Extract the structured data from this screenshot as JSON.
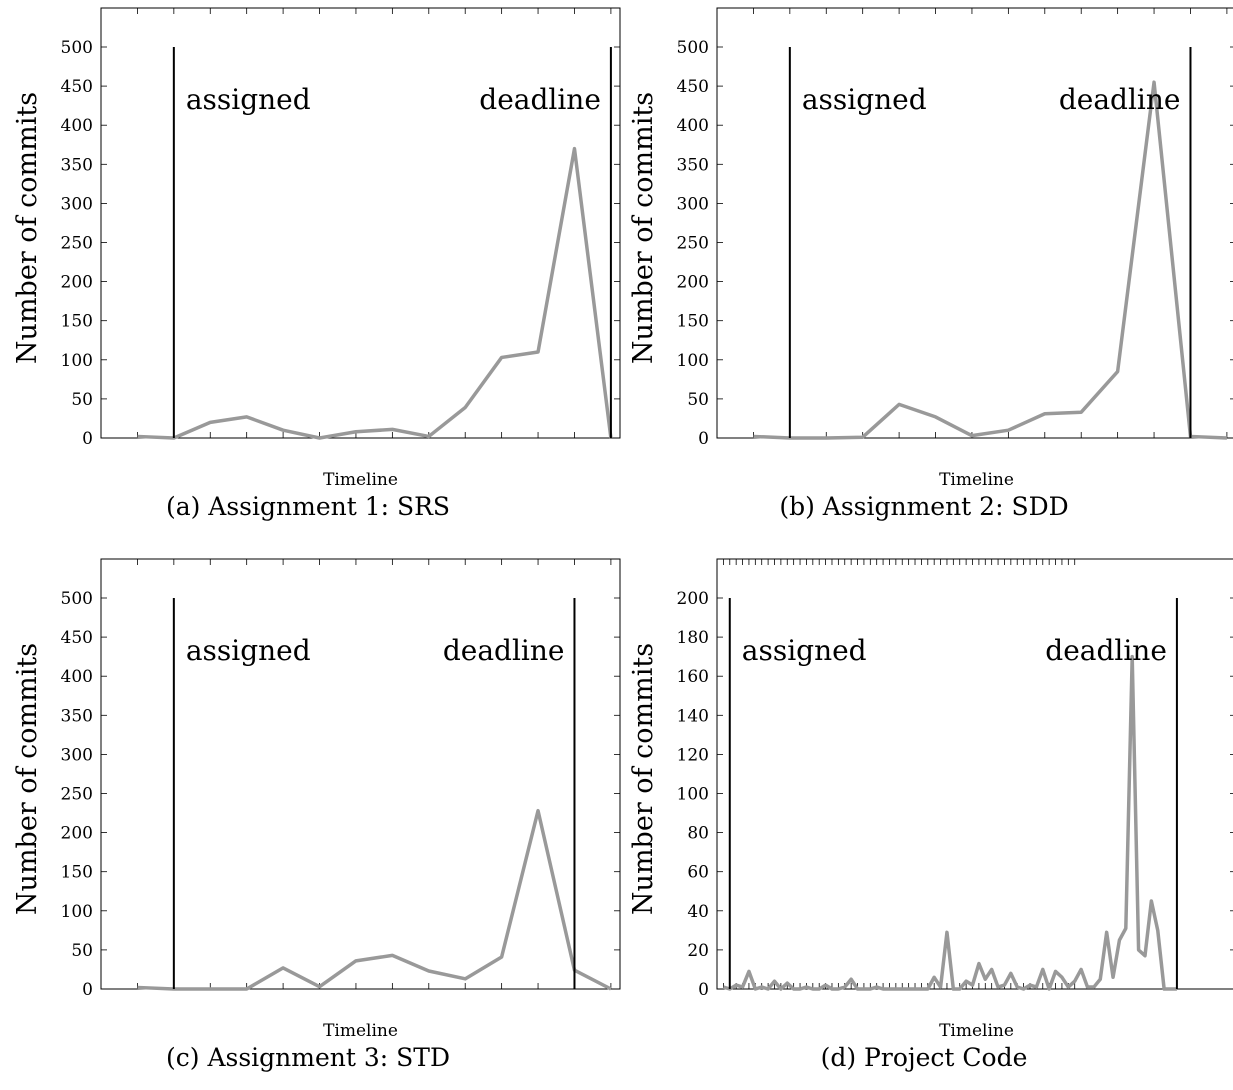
{
  "chart_data": [
    {
      "type": "line",
      "caption": "(a) Assignment 1: SRS",
      "xlabel": "Timeline",
      "ylabel": "Number of commits",
      "ylim": [
        0,
        500
      ],
      "yticks": [
        0,
        50,
        100,
        150,
        200,
        250,
        300,
        350,
        400,
        450,
        500
      ],
      "xlim": [
        -1,
        13.25
      ],
      "x_ticks_count": 15,
      "line_color": "#999999",
      "values": [
        2,
        0,
        20,
        27,
        10,
        0,
        8,
        11,
        2,
        39,
        103,
        110,
        370,
        0
      ],
      "markers": [
        {
          "x": 1,
          "label": "assigned",
          "label_side": "right"
        },
        {
          "x": 13,
          "label": "deadline",
          "label_side": "left"
        }
      ]
    },
    {
      "type": "line",
      "caption": "(b) Assignment 2: SDD",
      "xlabel": "Timeline",
      "ylabel": "Number of commits",
      "ylim": [
        0,
        500
      ],
      "yticks": [
        0,
        50,
        100,
        150,
        200,
        250,
        300,
        350,
        400,
        450,
        500
      ],
      "xlim": [
        -1,
        13.25
      ],
      "x_ticks_count": 15,
      "line_color": "#999999",
      "values": [
        2,
        0,
        0,
        1,
        43,
        27,
        3,
        10,
        31,
        33,
        85,
        455,
        2,
        0
      ],
      "markers": [
        {
          "x": 1,
          "label": "assigned",
          "label_side": "right"
        },
        {
          "x": 12,
          "label": "deadline",
          "label_side": "left"
        }
      ]
    },
    {
      "type": "line",
      "caption": "(c) Assignment 3: STD",
      "xlabel": "Timeline",
      "ylabel": "Number of commits",
      "ylim": [
        0,
        500
      ],
      "yticks": [
        0,
        50,
        100,
        150,
        200,
        250,
        300,
        350,
        400,
        450,
        500
      ],
      "xlim": [
        -1,
        13.25
      ],
      "x_ticks_count": 15,
      "line_color": "#999999",
      "values": [
        2,
        0,
        0,
        0,
        27,
        3,
        36,
        43,
        23,
        13,
        41,
        228,
        24,
        0
      ],
      "markers": [
        {
          "x": 1,
          "label": "assigned",
          "label_side": "right"
        },
        {
          "x": 12,
          "label": "deadline",
          "label_side": "left"
        }
      ]
    },
    {
      "type": "line",
      "caption": "(d) Project Code",
      "xlabel": "Timeline",
      "ylabel": "Number of commits",
      "ylim": [
        0,
        200
      ],
      "yticks": [
        0,
        20,
        40,
        60,
        80,
        100,
        120,
        140,
        160,
        180,
        200
      ],
      "xlim": [
        -1,
        80.25
      ],
      "x_ticks_count": 56,
      "line_color": "#999999",
      "values": [
        1,
        0,
        2,
        1,
        9,
        0,
        1,
        0,
        4,
        0,
        3,
        0,
        0,
        1,
        0,
        0,
        2,
        0,
        0,
        1,
        5,
        0,
        0,
        0,
        1,
        0,
        0,
        0,
        0,
        0,
        0,
        0,
        0,
        6,
        1,
        29,
        0,
        0,
        4,
        2,
        13,
        5,
        10,
        1,
        2,
        8,
        1,
        0,
        2,
        1,
        10,
        0,
        9,
        6,
        1,
        4,
        10,
        1,
        1,
        5,
        29,
        6,
        25,
        31,
        170,
        20,
        17,
        45,
        30,
        0,
        0,
        0
      ],
      "markers": [
        {
          "x": 1,
          "label": "assigned",
          "label_side": "right"
        },
        {
          "x": 71,
          "label": "deadline",
          "label_side": "left"
        }
      ]
    }
  ]
}
